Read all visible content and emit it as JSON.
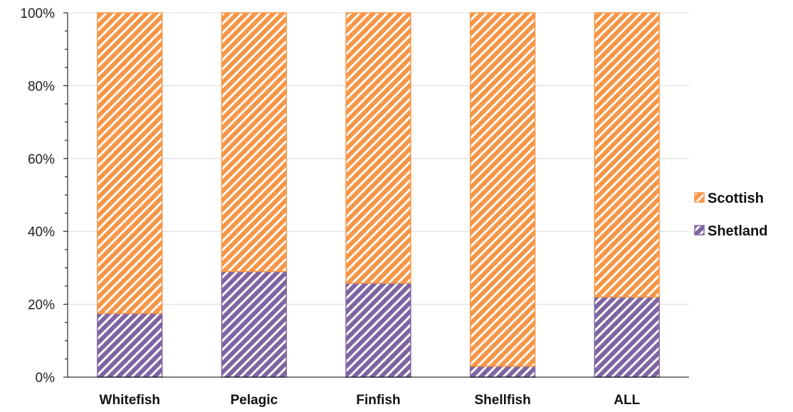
{
  "chart_data": {
    "type": "bar",
    "stacked": true,
    "percent": true,
    "categories": [
      "Whitefish",
      "Pelagic",
      "Finfish",
      "Shellfish",
      "ALL"
    ],
    "series": [
      {
        "name": "Shetland",
        "values": [
          17.5,
          29,
          25.8,
          3,
          22
        ],
        "color": "#8064a2",
        "pattern": "diagonal-hatch"
      },
      {
        "name": "Scottish",
        "values": [
          82.5,
          71,
          74.2,
          97,
          78
        ],
        "color": "#f79646",
        "pattern": "diagonal-hatch"
      }
    ],
    "y_ticks": [
      "0%",
      "20%",
      "40%",
      "60%",
      "80%",
      "100%"
    ],
    "ylim": [
      0,
      100
    ],
    "grid": true,
    "legend": {
      "placement": "right",
      "order": [
        "Scottish",
        "Shetland"
      ]
    }
  }
}
